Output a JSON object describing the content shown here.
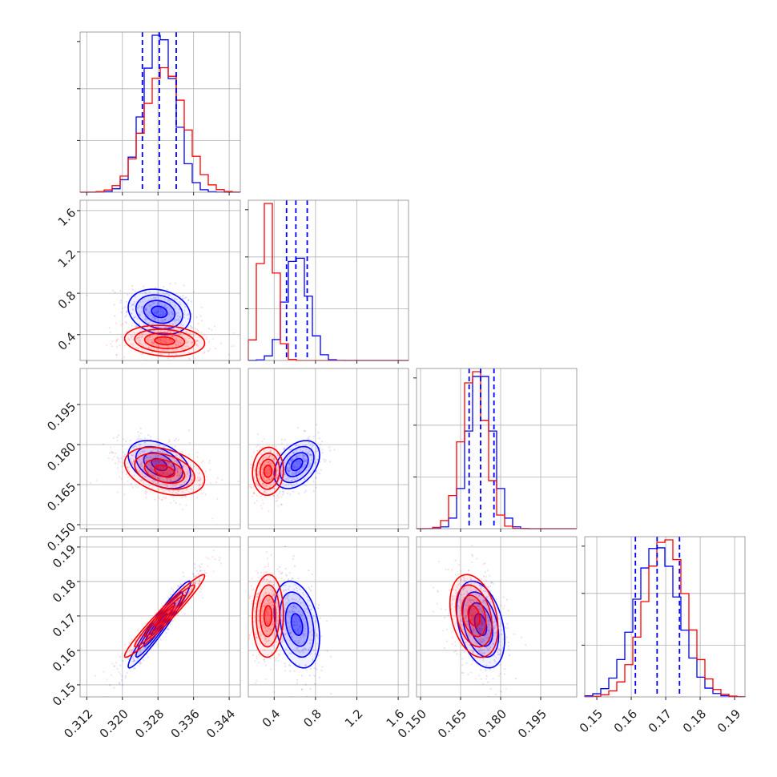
{
  "colors": {
    "series_a": "#0000ff",
    "series_b": "#ff0000",
    "grid": "#b0b0b0",
    "axes": "#888888"
  },
  "chart_data": {
    "type": "corner",
    "grid": true,
    "series": [
      {
        "color": "#0000ff",
        "means": [
          0.3283,
          0.62,
          0.1725,
          0.1675
        ],
        "stds": [
          0.0035,
          0.11,
          0.0045,
          0.0063
        ],
        "correlations": {
          "0-1": -0.2,
          "0-2": -0.4,
          "0-3": 0.96,
          "1-2": 0.4,
          "1-3": -0.3,
          "2-3": -0.35
        },
        "quantile_lines": [
          [
            0.3245,
            0.3283,
            0.3321
          ],
          [
            0.52,
            0.61,
            0.72
          ],
          [
            0.1682,
            0.1725,
            0.1775
          ],
          [
            0.1612,
            0.1675,
            0.174
          ]
        ]
      },
      {
        "color": "#ff0000",
        "means": [
          0.3295,
          0.34,
          0.17,
          0.17
        ],
        "stds": [
          0.0045,
          0.075,
          0.0045,
          0.006
        ],
        "correlations": {
          "0-1": -0.15,
          "0-2": -0.35,
          "0-3": 0.97,
          "1-2": 0.05,
          "1-3": 0.05,
          "2-3": -0.3
        }
      }
    ],
    "panels": [
      {
        "ranges": [
          0.3105,
          0.3465
        ],
        "ticks": [
          "0.312",
          "0.320",
          "0.328",
          "0.336",
          "0.344"
        ]
      },
      {
        "ranges": [
          0.15,
          1.7
        ],
        "ticks": [
          "0.4",
          "0.8",
          "1.2",
          "1.6"
        ]
      },
      {
        "ranges": [
          0.1485,
          0.2085
        ],
        "ticks": [
          "0.150",
          "0.165",
          "0.180",
          "0.195"
        ]
      },
      {
        "ranges": [
          0.1465,
          0.193
        ],
        "ticks": [
          "0.15",
          "0.16",
          "0.17",
          "0.18",
          "0.19"
        ]
      }
    ],
    "hist_bins": 20
  }
}
